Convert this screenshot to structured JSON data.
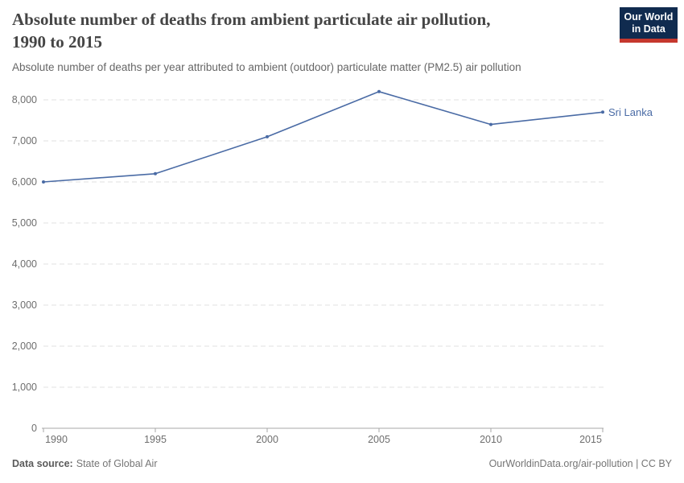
{
  "header": {
    "title": "Absolute number of deaths from ambient particulate air pollution, 1990 to 2015",
    "title_lines": [
      "Absolute number of deaths from ambient particulate air pollution,",
      "1990 to 2015"
    ],
    "subtitle": "Absolute number of deaths per year attributed to ambient (outdoor) particulate matter (PM2.5) air pollution",
    "logo": {
      "line1": "Our World",
      "line2": "in Data"
    }
  },
  "chart_data": {
    "type": "line",
    "title": "Absolute number of deaths from ambient particulate air pollution, 1990 to 2015",
    "x": [
      1990,
      1995,
      2000,
      2005,
      2010,
      2015
    ],
    "series": [
      {
        "name": "Sri Lanka",
        "values": [
          6000,
          6200,
          7100,
          8200,
          7400,
          7700
        ],
        "color": "#4A6BA5"
      }
    ],
    "xlim": [
      1990,
      2015
    ],
    "ylim": [
      0,
      8000
    ],
    "y_ticks": [
      0,
      1000,
      2000,
      3000,
      4000,
      5000,
      6000,
      7000,
      8000
    ],
    "y_tick_labels": [
      "0",
      "1,000",
      "2,000",
      "3,000",
      "4,000",
      "5,000",
      "6,000",
      "7,000",
      "8,000"
    ],
    "x_tick_labels": [
      "1990",
      "1995",
      "2000",
      "2005",
      "2010",
      "2015"
    ],
    "grid": "horizontal-dashed",
    "legend_position": "end-of-line-label",
    "entity_label": "Sri Lanka"
  },
  "footer": {
    "source_label": "Data source:",
    "source_value": "State of Global Air",
    "link_text": "OurWorldinData.org/air-pollution | CC BY"
  },
  "colors": {
    "line": "#4A6BA5",
    "grid": "#E2E2E2",
    "axis": "#A7A7A7",
    "tick_label": "#6E6E6E",
    "title": "#454545",
    "subtitle": "#666666",
    "logo_bg": "#102B4F",
    "logo_bar": "#C5382E"
  }
}
